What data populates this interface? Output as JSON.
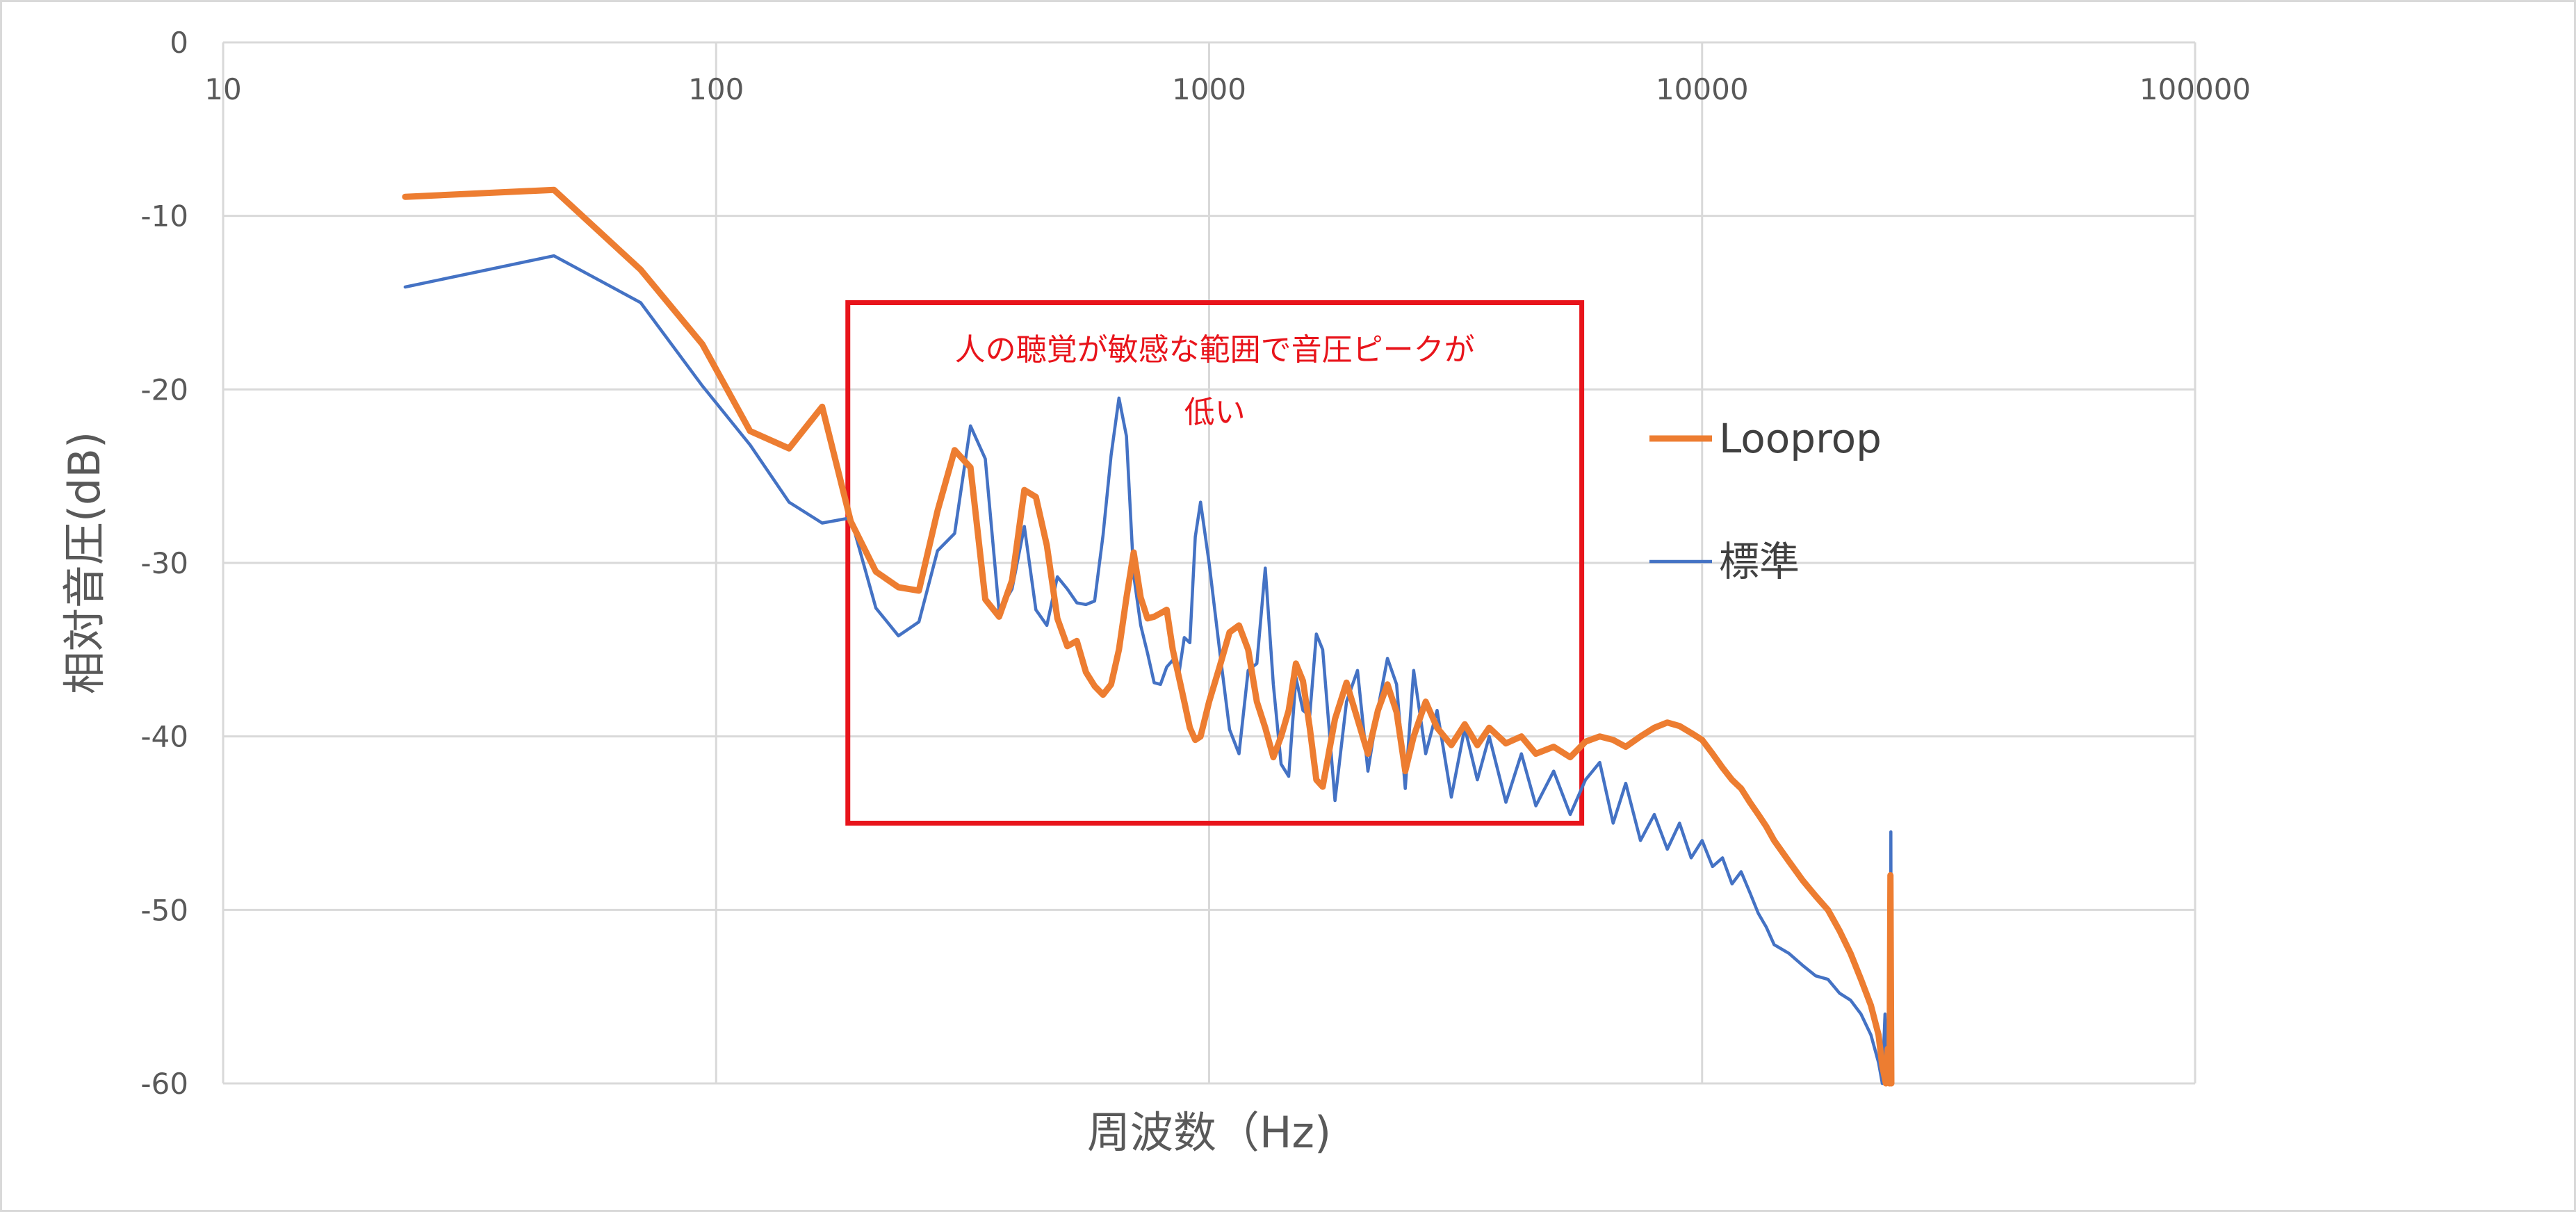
{
  "chart_data": {
    "type": "line",
    "title": "",
    "xlabel": "周波数（Hz)",
    "ylabel": "相対音圧(dB)",
    "x_scale": "log",
    "xlim": [
      10,
      100000
    ],
    "ylim": [
      -60,
      0
    ],
    "x_ticks": [
      "10",
      "100",
      "1000",
      "10000",
      "100000"
    ],
    "y_ticks": [
      "0",
      "-10",
      "-20",
      "-30",
      "-40",
      "-50",
      "-60"
    ],
    "grid": true,
    "legend_position": "right",
    "annotation": {
      "line1": "人の聴覚が敏感な範囲で音圧ピークが",
      "line2": "低い",
      "color": "#e8141b",
      "region_x": [
        185,
        5700
      ],
      "region_y": [
        -15,
        -45
      ]
    },
    "series": [
      {
        "name": "Looprop",
        "color": "#ed7d31",
        "points": [
          [
            23.4,
            -8.9
          ],
          [
            46.9,
            -8.5
          ],
          [
            70.3,
            -13.1
          ],
          [
            93.8,
            -17.4
          ],
          [
            117.2,
            -22.4
          ],
          [
            140.6,
            -23.4
          ],
          [
            164.1,
            -21.0
          ],
          [
            187.5,
            -27.6
          ],
          [
            210.9,
            -30.5
          ],
          [
            234.4,
            -31.4
          ],
          [
            257.8,
            -31.6
          ],
          [
            281.3,
            -27.0
          ],
          [
            304.7,
            -23.5
          ],
          [
            328.1,
            -24.5
          ],
          [
            351.6,
            -32.1
          ],
          [
            375.0,
            -33.1
          ],
          [
            398.4,
            -31.0
          ],
          [
            421.9,
            -25.8
          ],
          [
            445.3,
            -26.2
          ],
          [
            468.8,
            -29.0
          ],
          [
            492.2,
            -33.2
          ],
          [
            515.6,
            -34.8
          ],
          [
            539.1,
            -34.5
          ],
          [
            562.5,
            -36.3
          ],
          [
            585.9,
            -37.1
          ],
          [
            609.4,
            -37.6
          ],
          [
            632.8,
            -37.0
          ],
          [
            656.3,
            -35.0
          ],
          [
            679.7,
            -32.0
          ],
          [
            703.1,
            -29.4
          ],
          [
            726.6,
            -32.0
          ],
          [
            750.0,
            -33.2
          ],
          [
            773.4,
            -33.1
          ],
          [
            796.9,
            -32.9
          ],
          [
            820.3,
            -32.7
          ],
          [
            843.8,
            -35.0
          ],
          [
            867.2,
            -36.5
          ],
          [
            890.6,
            -38.0
          ],
          [
            914.1,
            -39.5
          ],
          [
            937.5,
            -40.2
          ],
          [
            960.9,
            -40.0
          ],
          [
            1000,
            -38.0
          ],
          [
            1050,
            -36.0
          ],
          [
            1100,
            -34.0
          ],
          [
            1150,
            -33.6
          ],
          [
            1200,
            -35.0
          ],
          [
            1250,
            -38.0
          ],
          [
            1300,
            -39.5
          ],
          [
            1350,
            -41.2
          ],
          [
            1400,
            -40.0
          ],
          [
            1450,
            -38.5
          ],
          [
            1500,
            -35.8
          ],
          [
            1550,
            -36.8
          ],
          [
            1600,
            -39.5
          ],
          [
            1650,
            -42.5
          ],
          [
            1700,
            -42.9
          ],
          [
            1800,
            -39.0
          ],
          [
            1900,
            -36.9
          ],
          [
            2000,
            -39.0
          ],
          [
            2100,
            -41.0
          ],
          [
            2200,
            -38.5
          ],
          [
            2300,
            -37.0
          ],
          [
            2400,
            -38.6
          ],
          [
            2500,
            -42.0
          ],
          [
            2600,
            -40.0
          ],
          [
            2750,
            -38.0
          ],
          [
            2900,
            -39.5
          ],
          [
            3100,
            -40.5
          ],
          [
            3300,
            -39.3
          ],
          [
            3500,
            -40.5
          ],
          [
            3700,
            -39.5
          ],
          [
            4000,
            -40.4
          ],
          [
            4300,
            -40.0
          ],
          [
            4600,
            -41.0
          ],
          [
            5000,
            -40.6
          ],
          [
            5400,
            -41.2
          ],
          [
            5800,
            -40.3
          ],
          [
            6200,
            -40.0
          ],
          [
            6600,
            -40.2
          ],
          [
            7000,
            -40.6
          ],
          [
            7500,
            -40.0
          ],
          [
            8000,
            -39.5
          ],
          [
            8500,
            -39.2
          ],
          [
            9000,
            -39.4
          ],
          [
            9500,
            -39.8
          ],
          [
            10000,
            -40.2
          ],
          [
            10500,
            -41.0
          ],
          [
            11000,
            -41.8
          ],
          [
            11500,
            -42.5
          ],
          [
            12000,
            -43.0
          ],
          [
            12500,
            -43.8
          ],
          [
            13000,
            -44.5
          ],
          [
            13500,
            -45.2
          ],
          [
            14000,
            -46.0
          ],
          [
            15000,
            -47.2
          ],
          [
            16000,
            -48.3
          ],
          [
            17000,
            -49.2
          ],
          [
            18000,
            -50.0
          ],
          [
            19000,
            -51.2
          ],
          [
            20000,
            -52.5
          ],
          [
            21000,
            -54.0
          ],
          [
            22000,
            -55.5
          ],
          [
            22800,
            -57.2
          ],
          [
            23200,
            -59.0
          ],
          [
            23600,
            -60.0
          ],
          [
            23800,
            -58.0
          ],
          [
            24000,
            -60.0
          ],
          [
            24100,
            -48.0
          ],
          [
            24200,
            -60.0
          ]
        ]
      },
      {
        "name": "標準",
        "color": "#4472c4",
        "points": [
          [
            23.4,
            -14.1
          ],
          [
            46.9,
            -12.3
          ],
          [
            70.3,
            -15.0
          ],
          [
            93.8,
            -19.8
          ],
          [
            117.2,
            -23.2
          ],
          [
            140.6,
            -26.5
          ],
          [
            164.1,
            -27.7
          ],
          [
            187.5,
            -27.4
          ],
          [
            210.9,
            -32.6
          ],
          [
            234.4,
            -34.2
          ],
          [
            257.8,
            -33.4
          ],
          [
            281.3,
            -29.3
          ],
          [
            304.7,
            -28.3
          ],
          [
            328.1,
            -22.1
          ],
          [
            351.6,
            -24.0
          ],
          [
            375.0,
            -32.8
          ],
          [
            398.4,
            -31.5
          ],
          [
            421.9,
            -27.9
          ],
          [
            445.3,
            -32.7
          ],
          [
            468.8,
            -33.6
          ],
          [
            492.2,
            -30.8
          ],
          [
            515.6,
            -31.5
          ],
          [
            539.1,
            -32.3
          ],
          [
            562.5,
            -32.4
          ],
          [
            585.9,
            -32.2
          ],
          [
            609.4,
            -28.4
          ],
          [
            632.8,
            -23.8
          ],
          [
            656.3,
            -20.5
          ],
          [
            679.7,
            -22.7
          ],
          [
            703.1,
            -30.7
          ],
          [
            726.6,
            -33.6
          ],
          [
            750.0,
            -35.2
          ],
          [
            773.4,
            -36.9
          ],
          [
            796.9,
            -37.0
          ],
          [
            820.3,
            -36.0
          ],
          [
            843.8,
            -35.6
          ],
          [
            867.2,
            -36.5
          ],
          [
            890.6,
            -34.3
          ],
          [
            914.1,
            -34.6
          ],
          [
            937.5,
            -28.5
          ],
          [
            960.9,
            -26.5
          ],
          [
            1000,
            -30.0
          ],
          [
            1050,
            -35.0
          ],
          [
            1100,
            -39.6
          ],
          [
            1150,
            -41.0
          ],
          [
            1200,
            -36.2
          ],
          [
            1250,
            -35.8
          ],
          [
            1300,
            -30.3
          ],
          [
            1350,
            -37.0
          ],
          [
            1400,
            -41.6
          ],
          [
            1450,
            -42.3
          ],
          [
            1500,
            -36.6
          ],
          [
            1550,
            -38.5
          ],
          [
            1600,
            -38.8
          ],
          [
            1650,
            -34.1
          ],
          [
            1700,
            -35.0
          ],
          [
            1800,
            -43.7
          ],
          [
            1900,
            -38.0
          ],
          [
            2000,
            -36.2
          ],
          [
            2100,
            -42.0
          ],
          [
            2200,
            -38.4
          ],
          [
            2300,
            -35.5
          ],
          [
            2400,
            -37.0
          ],
          [
            2500,
            -43.0
          ],
          [
            2600,
            -36.2
          ],
          [
            2750,
            -41.0
          ],
          [
            2900,
            -38.5
          ],
          [
            3100,
            -43.5
          ],
          [
            3300,
            -39.5
          ],
          [
            3500,
            -42.5
          ],
          [
            3700,
            -40.0
          ],
          [
            4000,
            -43.8
          ],
          [
            4300,
            -41.0
          ],
          [
            4600,
            -44.0
          ],
          [
            5000,
            -42.0
          ],
          [
            5400,
            -44.5
          ],
          [
            5800,
            -42.5
          ],
          [
            6200,
            -41.5
          ],
          [
            6600,
            -45.0
          ],
          [
            7000,
            -42.7
          ],
          [
            7500,
            -46.0
          ],
          [
            8000,
            -44.5
          ],
          [
            8500,
            -46.5
          ],
          [
            9000,
            -45.0
          ],
          [
            9500,
            -47.0
          ],
          [
            10000,
            -46.0
          ],
          [
            10500,
            -47.5
          ],
          [
            11000,
            -47.0
          ],
          [
            11500,
            -48.5
          ],
          [
            12000,
            -47.8
          ],
          [
            12500,
            -49.0
          ],
          [
            13000,
            -50.2
          ],
          [
            13500,
            -51.0
          ],
          [
            14000,
            -52.0
          ],
          [
            15000,
            -52.5
          ],
          [
            16000,
            -53.2
          ],
          [
            17000,
            -53.8
          ],
          [
            18000,
            -54.0
          ],
          [
            19000,
            -54.8
          ],
          [
            20000,
            -55.2
          ],
          [
            21000,
            -56.0
          ],
          [
            22000,
            -57.2
          ],
          [
            22800,
            -58.8
          ],
          [
            23200,
            -60.0
          ],
          [
            23500,
            -56.0
          ],
          [
            23700,
            -60.0
          ],
          [
            23900,
            -55.5
          ],
          [
            24100,
            -60.0
          ],
          [
            24150,
            -45.5
          ],
          [
            24200,
            -60.0
          ]
        ]
      }
    ]
  }
}
